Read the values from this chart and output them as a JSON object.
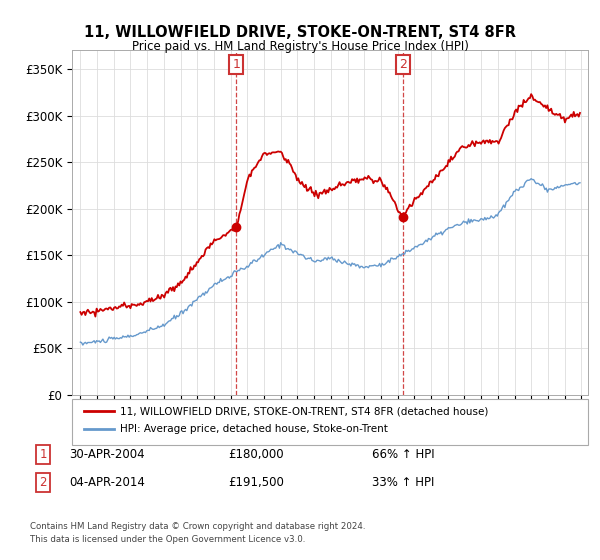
{
  "title": "11, WILLOWFIELD DRIVE, STOKE-ON-TRENT, ST4 8FR",
  "subtitle": "Price paid vs. HM Land Registry's House Price Index (HPI)",
  "ylabel_ticks": [
    "£0",
    "£50K",
    "£100K",
    "£150K",
    "£200K",
    "£250K",
    "£300K",
    "£350K"
  ],
  "ytick_values": [
    0,
    50000,
    100000,
    150000,
    200000,
    250000,
    300000,
    350000
  ],
  "ylim": [
    0,
    370000
  ],
  "red_line_label": "11, WILLOWFIELD DRIVE, STOKE-ON-TRENT, ST4 8FR (detached house)",
  "blue_line_label": "HPI: Average price, detached house, Stoke-on-Trent",
  "sale1_date": "30-APR-2004",
  "sale1_price": 180000,
  "sale1_pct": "66% ↑ HPI",
  "sale2_date": "04-APR-2014",
  "sale2_price": 191500,
  "sale2_pct": "33% ↑ HPI",
  "footer_line1": "Contains HM Land Registry data © Crown copyright and database right 2024.",
  "footer_line2": "This data is licensed under the Open Government Licence v3.0.",
  "red_color": "#cc0000",
  "blue_color": "#6699cc",
  "marker_box_color": "#cc3333",
  "background_color": "#ffffff",
  "grid_color": "#dddddd",
  "sale1_x": 2004.33,
  "sale1_y": 180000,
  "sale2_x": 2014.33,
  "sale2_y": 191500,
  "hpi_x": [
    1995,
    1996,
    1997,
    1998,
    1999,
    2000,
    2001,
    2002,
    2003,
    2004,
    2005,
    2006,
    2007,
    2008,
    2009,
    2010,
    2011,
    2012,
    2013,
    2014,
    2015,
    2016,
    2017,
    2018,
    2019,
    2020,
    2021,
    2022,
    2023,
    2024,
    2024.92
  ],
  "hpi_y": [
    55000,
    57000,
    60000,
    63000,
    68000,
    75000,
    87000,
    103000,
    118000,
    128000,
    138000,
    150000,
    162000,
    152000,
    143000,
    147000,
    141000,
    137000,
    140000,
    148000,
    158000,
    168000,
    178000,
    185000,
    188000,
    193000,
    218000,
    232000,
    220000,
    225000,
    228000
  ],
  "red_x": [
    1995,
    1996,
    1997,
    1998,
    1999,
    2000,
    2001,
    2002,
    2003,
    2004.33,
    2005,
    2006,
    2007,
    2007.5,
    2008,
    2009,
    2010,
    2011,
    2012,
    2013,
    2014.33,
    2015,
    2016,
    2017,
    2018,
    2019,
    2020,
    2021,
    2022,
    2023,
    2024,
    2024.92
  ],
  "red_y": [
    88000,
    90000,
    93000,
    96000,
    100000,
    107000,
    120000,
    142000,
    165000,
    180000,
    232000,
    258000,
    262000,
    248000,
    232000,
    215000,
    220000,
    227000,
    232000,
    230000,
    191500,
    210000,
    228000,
    248000,
    268000,
    272000,
    272000,
    302000,
    322000,
    307000,
    297000,
    302000
  ],
  "xlim_min": 1994.5,
  "xlim_max": 2025.4,
  "xtick_years": [
    1995,
    1996,
    1997,
    1998,
    1999,
    2000,
    2001,
    2002,
    2003,
    2004,
    2005,
    2006,
    2007,
    2008,
    2009,
    2010,
    2011,
    2012,
    2013,
    2014,
    2015,
    2016,
    2017,
    2018,
    2019,
    2020,
    2021,
    2022,
    2023,
    2024,
    2025
  ]
}
